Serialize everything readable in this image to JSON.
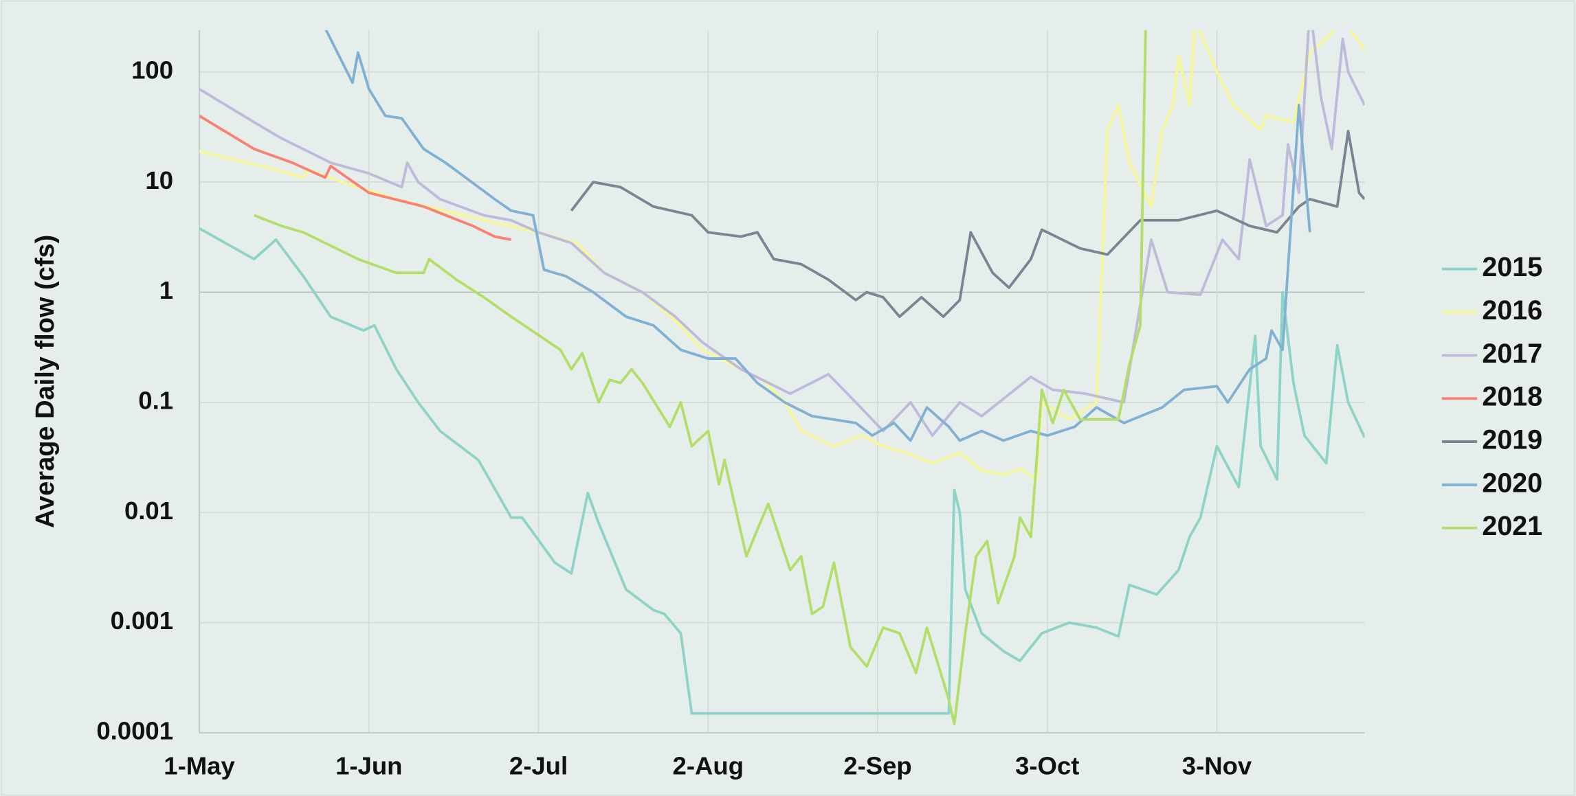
{
  "chart_data": {
    "type": "line",
    "y_label": "Average Daily flow (cfs)",
    "log_scale": true,
    "grid": true,
    "legend": "right",
    "xlim": [
      0,
      213
    ],
    "xticks": [
      {
        "value": 0,
        "label": "1-May"
      },
      {
        "value": 31,
        "label": "1-Jun"
      },
      {
        "value": 62,
        "label": "2-Jul"
      },
      {
        "value": 93,
        "label": "2-Aug"
      },
      {
        "value": 124,
        "label": "2-Sep"
      },
      {
        "value": 155,
        "label": "3-Oct"
      },
      {
        "value": 186,
        "label": "3-Nov"
      }
    ],
    "ylim": [
      0.0001,
      240
    ],
    "yticks": [
      0.0001,
      0.001,
      0.01,
      0.1,
      1,
      10,
      100
    ],
    "series": [
      {
        "name": "2015",
        "color": "#8dd3c7",
        "x": [
          0,
          10,
          14,
          19,
          24,
          30,
          32,
          36,
          40,
          44,
          51,
          57,
          59,
          65,
          68,
          71,
          73,
          78,
          83,
          85,
          88,
          90,
          137,
          138,
          139,
          140,
          143,
          147,
          150,
          154,
          159,
          164,
          168,
          170,
          175,
          179,
          181,
          183,
          186,
          190,
          193,
          194,
          197,
          198,
          200,
          202,
          206,
          208,
          210,
          213
        ],
        "values": [
          3.8,
          2,
          3,
          1.4,
          0.6,
          0.45,
          0.5,
          0.2,
          0.1,
          0.055,
          0.03,
          0.009,
          0.009,
          0.0035,
          0.0028,
          0.015,
          0.008,
          0.002,
          0.0013,
          0.0012,
          0.0008,
          0.00015,
          0.00015,
          0.016,
          0.01,
          0.002,
          0.0008,
          0.00055,
          0.00045,
          0.0008,
          0.001,
          0.0009,
          0.00075,
          0.0022,
          0.0018,
          0.003,
          0.006,
          0.009,
          0.04,
          0.017,
          0.4,
          0.04,
          0.02,
          1,
          0.15,
          0.05,
          0.028,
          0.33,
          0.1,
          0.048
        ]
      },
      {
        "name": "2016",
        "color": "#f7f79a",
        "x": [
          0,
          14,
          19,
          20,
          26,
          36,
          52,
          62,
          69,
          74,
          81,
          87,
          92,
          99,
          103,
          107,
          110,
          116,
          121,
          125,
          129,
          134,
          139,
          143,
          147,
          150,
          153,
          154,
          159,
          164,
          166,
          168,
          170,
          174,
          176,
          178,
          179,
          181,
          182,
          186,
          189,
          194,
          195,
          200,
          203,
          206,
          209,
          213
        ],
        "values": [
          19,
          13,
          11,
          13,
          10,
          7,
          4.5,
          3.5,
          2.8,
          1.5,
          1,
          0.55,
          0.3,
          0.2,
          0.16,
          0.1,
          0.055,
          0.04,
          0.05,
          0.04,
          0.035,
          0.028,
          0.035,
          0.024,
          0.022,
          0.025,
          0.02,
          0.1,
          0.07,
          0.1,
          30,
          50,
          15,
          6,
          30,
          50,
          140,
          50,
          300,
          100,
          50,
          30,
          40,
          35,
          150,
          200,
          300,
          160
        ]
      },
      {
        "name": "2017",
        "color": "#bebada",
        "x": [
          0,
          10,
          15,
          24,
          31,
          37,
          38,
          40,
          44,
          52,
          57,
          62,
          68,
          74,
          81,
          87,
          92,
          99,
          108,
          115,
          120,
          125,
          130,
          134,
          139,
          143,
          152,
          156,
          162,
          169,
          174,
          177,
          183,
          187,
          190,
          192,
          195,
          198,
          199,
          201,
          203,
          205,
          207,
          209,
          210,
          213
        ],
        "values": [
          70,
          35,
          25,
          15,
          12,
          9,
          15,
          10,
          7,
          5,
          4.5,
          3.5,
          2.8,
          1.5,
          1,
          0.6,
          0.35,
          0.2,
          0.12,
          0.18,
          0.1,
          0.055,
          0.1,
          0.05,
          0.1,
          0.075,
          0.17,
          0.13,
          0.12,
          0.1,
          3,
          1,
          0.95,
          3,
          2,
          16,
          4,
          5,
          22,
          8,
          400,
          60,
          20,
          200,
          100,
          50
        ]
      },
      {
        "name": "2018",
        "color": "#fb8072",
        "x": [
          0,
          10,
          17,
          23,
          24,
          31,
          41,
          50,
          54,
          57
        ],
        "values": [
          40,
          20,
          15,
          11,
          14,
          8,
          6,
          4,
          3.2,
          3
        ]
      },
      {
        "name": "2019",
        "color": "#7a8593",
        "x": [
          68,
          72,
          77,
          83,
          90,
          93,
          99,
          102,
          105,
          110,
          115,
          120,
          122,
          125,
          128,
          132,
          136,
          139,
          141,
          145,
          148,
          152,
          154,
          161,
          166,
          172,
          179,
          186,
          192,
          197,
          201,
          203,
          208,
          210,
          212,
          213
        ],
        "values": [
          5.5,
          10,
          9,
          6,
          5,
          3.5,
          3.2,
          3.5,
          2,
          1.8,
          1.3,
          0.85,
          1,
          0.9,
          0.6,
          0.9,
          0.6,
          0.85,
          3.5,
          1.5,
          1.1,
          2,
          3.7,
          2.5,
          2.2,
          4.5,
          4.5,
          5.5,
          4,
          3.5,
          6,
          7,
          6,
          29,
          8,
          7
        ]
      },
      {
        "name": "2020",
        "color": "#80b1d3",
        "x": [
          23,
          28,
          29,
          31,
          34,
          37,
          41,
          45,
          54,
          57,
          61,
          63,
          67,
          72,
          78,
          83,
          88,
          93,
          98,
          102,
          107,
          112,
          120,
          123,
          127,
          130,
          133,
          137,
          139,
          143,
          147,
          152,
          155,
          160,
          164,
          169,
          176,
          180,
          186,
          188,
          192,
          195,
          196,
          198,
          201,
          203
        ],
        "values": [
          250,
          80,
          150,
          70,
          40,
          38,
          20,
          15,
          7,
          5.5,
          5,
          1.6,
          1.4,
          1,
          0.6,
          0.5,
          0.3,
          0.25,
          0.25,
          0.15,
          0.1,
          0.075,
          0.065,
          0.05,
          0.065,
          0.045,
          0.09,
          0.06,
          0.045,
          0.055,
          0.045,
          0.055,
          0.05,
          0.06,
          0.09,
          0.065,
          0.09,
          0.13,
          0.14,
          0.1,
          0.2,
          0.25,
          0.45,
          0.3,
          50,
          3.5
        ]
      },
      {
        "name": "2021",
        "color": "#b3de69",
        "x": [
          10,
          15,
          19,
          23,
          29,
          36,
          41,
          42,
          47,
          52,
          57,
          64,
          66,
          68,
          70,
          73,
          75,
          77,
          79,
          81,
          86,
          88,
          90,
          93,
          95,
          96,
          100,
          102,
          104,
          108,
          110,
          112,
          114,
          116,
          119,
          122,
          125,
          128,
          131,
          133,
          137,
          138,
          140,
          142,
          144,
          146,
          149,
          150,
          152,
          154,
          156,
          158,
          161,
          168,
          170,
          172,
          173
        ],
        "values": [
          5,
          4,
          3.5,
          2.8,
          2,
          1.5,
          1.5,
          2,
          1.3,
          0.9,
          0.6,
          0.35,
          0.3,
          0.2,
          0.28,
          0.1,
          0.16,
          0.15,
          0.2,
          0.15,
          0.06,
          0.1,
          0.04,
          0.055,
          0.018,
          0.03,
          0.004,
          0.007,
          0.012,
          0.003,
          0.004,
          0.0012,
          0.0014,
          0.0035,
          0.0006,
          0.0004,
          0.0009,
          0.0008,
          0.00035,
          0.0009,
          0.0002,
          0.00012,
          0.0008,
          0.004,
          0.0055,
          0.0015,
          0.004,
          0.009,
          0.006,
          0.13,
          0.065,
          0.13,
          0.07,
          0.07,
          0.22,
          0.5,
          300
        ]
      }
    ]
  }
}
